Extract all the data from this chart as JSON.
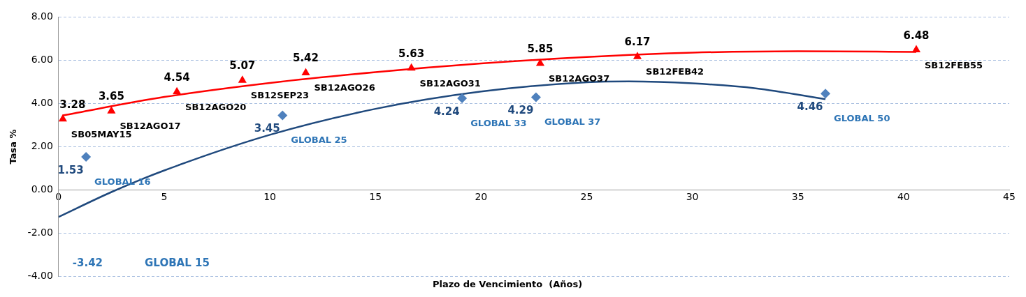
{
  "chart_data": {
    "type": "scatter",
    "xlabel": "Plazo de Vencimiento  (Años)",
    "ylabel": "Tasa %",
    "xlim": [
      0,
      45
    ],
    "xticks": [
      0,
      5,
      10,
      15,
      20,
      25,
      30,
      35,
      40,
      45
    ],
    "ylim": [
      -4,
      8
    ],
    "yticks": [
      {
        "value": -4,
        "label": "-4.00"
      },
      {
        "value": -2,
        "label": "-2.00"
      },
      {
        "value": 0,
        "label": "0.00"
      },
      {
        "value": 2,
        "label": "2.00"
      },
      {
        "value": 4,
        "label": "4.00"
      },
      {
        "value": 6,
        "label": "6.00"
      },
      {
        "value": 8,
        "label": "8.00"
      }
    ],
    "grid": "y",
    "legend": false,
    "series": [
      {
        "type": "scatter",
        "marker": "triangle",
        "color": "#ff0000",
        "x": [
          0.2,
          2.5,
          5.6,
          8.7,
          11.7,
          16.7,
          22.8,
          27.4,
          40.6
        ],
        "values": [
          3.28,
          3.65,
          4.54,
          5.07,
          5.42,
          5.63,
          5.85,
          6.17,
          6.48
        ],
        "value_labels": [
          "3.28",
          "3.65",
          "4.54",
          "5.07",
          "5.42",
          "5.63",
          "5.85",
          "6.17",
          "6.48"
        ]
      },
      {
        "type": "scatter",
        "marker": "diamond",
        "color": "#4f81bd",
        "x": [
          1.3,
          10.6,
          19.1,
          22.6,
          36.3
        ],
        "values": [
          1.53,
          3.45,
          4.24,
          4.29,
          4.46
        ],
        "value_labels": [
          "1.53",
          "3.45",
          "4.24",
          "4.29",
          "4.46"
        ]
      },
      {
        "type": "line",
        "marker": "none",
        "color": "#ff0000",
        "x": [
          0.2,
          5,
          10,
          15,
          20,
          25,
          30,
          35,
          40.6
        ],
        "values": [
          3.45,
          4.3,
          4.95,
          5.45,
          5.85,
          6.15,
          6.35,
          6.42,
          6.38
        ]
      },
      {
        "type": "line",
        "marker": "none",
        "color": "#1f497d",
        "x": [
          0,
          2.5,
          5,
          10,
          15,
          20,
          25,
          27,
          30,
          33,
          36.3
        ],
        "values": [
          -1.25,
          -0.1,
          0.9,
          2.55,
          3.75,
          4.55,
          4.98,
          5.02,
          4.93,
          4.7,
          4.2
        ]
      }
    ],
    "annotations": [
      {
        "text": "SB05MAY15",
        "x": 0.2,
        "y": 3.28
      },
      {
        "text": "SB12AGO17",
        "x": 2.5,
        "y": 3.65
      },
      {
        "text": "SB12AGO20",
        "x": 5.6,
        "y": 4.54
      },
      {
        "text": "SB12SEP23",
        "x": 8.7,
        "y": 5.07
      },
      {
        "text": "SB12AGO26",
        "x": 11.7,
        "y": 5.42
      },
      {
        "text": "SB12AGO31",
        "x": 16.7,
        "y": 5.63
      },
      {
        "text": "SB12AGO37",
        "x": 22.8,
        "y": 5.85
      },
      {
        "text": "SB12FEB42",
        "x": 27.4,
        "y": 6.17
      },
      {
        "text": "SB12FEB55",
        "x": 40.6,
        "y": 6.48
      },
      {
        "text": "GLOBAL 16",
        "x": 1.3,
        "y": 1.53
      },
      {
        "text": "GLOBAL 25",
        "x": 10.6,
        "y": 3.45
      },
      {
        "text": "GLOBAL 33",
        "x": 19.1,
        "y": 4.24
      },
      {
        "text": "GLOBAL 37",
        "x": 22.6,
        "y": 4.29
      },
      {
        "text": "GLOBAL 50",
        "x": 36.3,
        "y": 4.46
      },
      "-3.42",
      "GLOBAL 15"
    ]
  }
}
